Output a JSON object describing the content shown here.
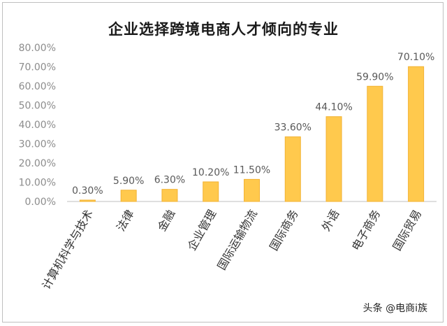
{
  "chart_data": {
    "type": "bar",
    "title": "企业选择跨境电商人才倾向的专业",
    "categories": [
      "计算机科学与技术",
      "法律",
      "金融",
      "企业管理",
      "国际运输物流",
      "国际商务",
      "外语",
      "电子商务",
      "国际贸易"
    ],
    "values": [
      0.3,
      5.9,
      6.3,
      10.2,
      11.5,
      33.6,
      44.1,
      59.9,
      70.1
    ],
    "data_labels": [
      "0.30%",
      "5.90%",
      "6.30%",
      "10.20%",
      "11.50%",
      "33.60%",
      "44.10%",
      "59.90%",
      "70.10%"
    ],
    "ytick_labels": [
      "0.00%",
      "10.00%",
      "20.00%",
      "30.00%",
      "40.00%",
      "50.00%",
      "60.00%",
      "70.00%",
      "80.00%"
    ],
    "ylim": [
      0,
      80
    ],
    "xlabel": "",
    "ylabel": "",
    "grid": false,
    "bar_color": "#FFC94D",
    "bar_edge_color": "#F2B233"
  },
  "watermark": "头条 @电商i族"
}
